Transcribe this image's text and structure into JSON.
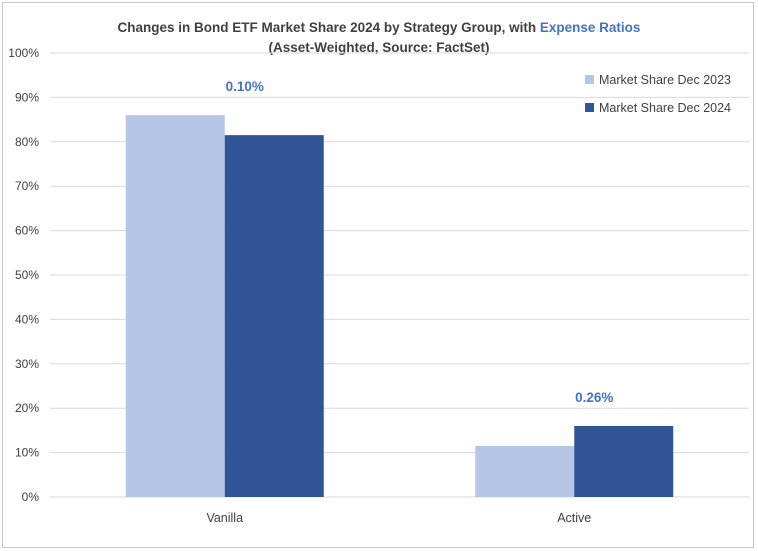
{
  "chart_data": {
    "type": "bar",
    "title_main": "Changes in Bond ETF Market Share 2024 by Strategy Group, with ",
    "title_accent": "Expense Ratios",
    "subtitle": "(Asset-Weighted, Source: FactSet)",
    "categories": [
      "Vanilla",
      "Active"
    ],
    "series": [
      {
        "name": "Market Share Dec 2023",
        "values": [
          86,
          11.5
        ],
        "color": "#b4c7e7"
      },
      {
        "name": "Market Share Dec 2024",
        "values": [
          81.5,
          16
        ],
        "color": "#2f5597"
      }
    ],
    "annotations": [
      "0.10%",
      "0.26%"
    ],
    "annotation_color": "#4472c4",
    "ylim": [
      0,
      100
    ],
    "yticks": [
      "0%",
      "10%",
      "20%",
      "30%",
      "40%",
      "50%",
      "60%",
      "70%",
      "80%",
      "90%",
      "100%"
    ],
    "grid": true,
    "legend_position": "top-right"
  }
}
